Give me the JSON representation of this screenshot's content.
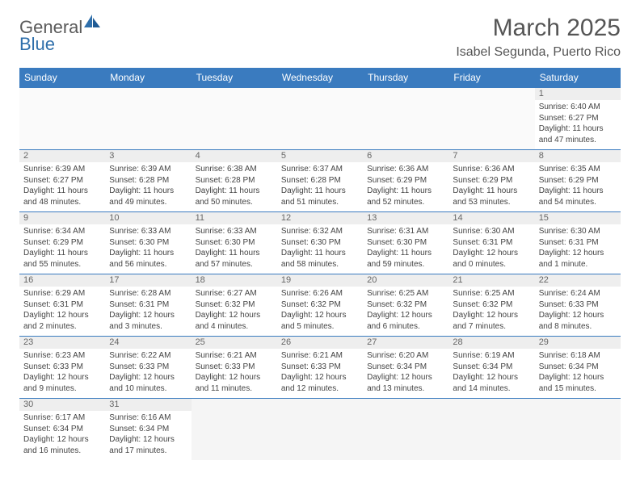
{
  "logo": {
    "part1": "General",
    "part2": "Blue"
  },
  "title": "March 2025",
  "location": "Isabel Segunda, Puerto Rico",
  "colors": {
    "header_bg": "#3a7bbf",
    "header_text": "#ffffff",
    "border": "#3a7bbf",
    "empty_bg": "#f5f5f5",
    "text": "#444444",
    "logo_gray": "#5a5a5a",
    "logo_blue": "#2f6fab"
  },
  "daysOfWeek": [
    "Sunday",
    "Monday",
    "Tuesday",
    "Wednesday",
    "Thursday",
    "Friday",
    "Saturday"
  ],
  "firstDayOffset": 6,
  "days": [
    {
      "n": 1,
      "sunrise": "6:40 AM",
      "sunset": "6:27 PM",
      "daylight": "11 hours and 47 minutes."
    },
    {
      "n": 2,
      "sunrise": "6:39 AM",
      "sunset": "6:27 PM",
      "daylight": "11 hours and 48 minutes."
    },
    {
      "n": 3,
      "sunrise": "6:39 AM",
      "sunset": "6:28 PM",
      "daylight": "11 hours and 49 minutes."
    },
    {
      "n": 4,
      "sunrise": "6:38 AM",
      "sunset": "6:28 PM",
      "daylight": "11 hours and 50 minutes."
    },
    {
      "n": 5,
      "sunrise": "6:37 AM",
      "sunset": "6:28 PM",
      "daylight": "11 hours and 51 minutes."
    },
    {
      "n": 6,
      "sunrise": "6:36 AM",
      "sunset": "6:29 PM",
      "daylight": "11 hours and 52 minutes."
    },
    {
      "n": 7,
      "sunrise": "6:36 AM",
      "sunset": "6:29 PM",
      "daylight": "11 hours and 53 minutes."
    },
    {
      "n": 8,
      "sunrise": "6:35 AM",
      "sunset": "6:29 PM",
      "daylight": "11 hours and 54 minutes."
    },
    {
      "n": 9,
      "sunrise": "6:34 AM",
      "sunset": "6:29 PM",
      "daylight": "11 hours and 55 minutes."
    },
    {
      "n": 10,
      "sunrise": "6:33 AM",
      "sunset": "6:30 PM",
      "daylight": "11 hours and 56 minutes."
    },
    {
      "n": 11,
      "sunrise": "6:33 AM",
      "sunset": "6:30 PM",
      "daylight": "11 hours and 57 minutes."
    },
    {
      "n": 12,
      "sunrise": "6:32 AM",
      "sunset": "6:30 PM",
      "daylight": "11 hours and 58 minutes."
    },
    {
      "n": 13,
      "sunrise": "6:31 AM",
      "sunset": "6:30 PM",
      "daylight": "11 hours and 59 minutes."
    },
    {
      "n": 14,
      "sunrise": "6:30 AM",
      "sunset": "6:31 PM",
      "daylight": "12 hours and 0 minutes."
    },
    {
      "n": 15,
      "sunrise": "6:30 AM",
      "sunset": "6:31 PM",
      "daylight": "12 hours and 1 minute."
    },
    {
      "n": 16,
      "sunrise": "6:29 AM",
      "sunset": "6:31 PM",
      "daylight": "12 hours and 2 minutes."
    },
    {
      "n": 17,
      "sunrise": "6:28 AM",
      "sunset": "6:31 PM",
      "daylight": "12 hours and 3 minutes."
    },
    {
      "n": 18,
      "sunrise": "6:27 AM",
      "sunset": "6:32 PM",
      "daylight": "12 hours and 4 minutes."
    },
    {
      "n": 19,
      "sunrise": "6:26 AM",
      "sunset": "6:32 PM",
      "daylight": "12 hours and 5 minutes."
    },
    {
      "n": 20,
      "sunrise": "6:25 AM",
      "sunset": "6:32 PM",
      "daylight": "12 hours and 6 minutes."
    },
    {
      "n": 21,
      "sunrise": "6:25 AM",
      "sunset": "6:32 PM",
      "daylight": "12 hours and 7 minutes."
    },
    {
      "n": 22,
      "sunrise": "6:24 AM",
      "sunset": "6:33 PM",
      "daylight": "12 hours and 8 minutes."
    },
    {
      "n": 23,
      "sunrise": "6:23 AM",
      "sunset": "6:33 PM",
      "daylight": "12 hours and 9 minutes."
    },
    {
      "n": 24,
      "sunrise": "6:22 AM",
      "sunset": "6:33 PM",
      "daylight": "12 hours and 10 minutes."
    },
    {
      "n": 25,
      "sunrise": "6:21 AM",
      "sunset": "6:33 PM",
      "daylight": "12 hours and 11 minutes."
    },
    {
      "n": 26,
      "sunrise": "6:21 AM",
      "sunset": "6:33 PM",
      "daylight": "12 hours and 12 minutes."
    },
    {
      "n": 27,
      "sunrise": "6:20 AM",
      "sunset": "6:34 PM",
      "daylight": "12 hours and 13 minutes."
    },
    {
      "n": 28,
      "sunrise": "6:19 AM",
      "sunset": "6:34 PM",
      "daylight": "12 hours and 14 minutes."
    },
    {
      "n": 29,
      "sunrise": "6:18 AM",
      "sunset": "6:34 PM",
      "daylight": "12 hours and 15 minutes."
    },
    {
      "n": 30,
      "sunrise": "6:17 AM",
      "sunset": "6:34 PM",
      "daylight": "12 hours and 16 minutes."
    },
    {
      "n": 31,
      "sunrise": "6:16 AM",
      "sunset": "6:34 PM",
      "daylight": "12 hours and 17 minutes."
    }
  ],
  "labels": {
    "sunrise": "Sunrise:",
    "sunset": "Sunset:",
    "daylight": "Daylight:"
  }
}
